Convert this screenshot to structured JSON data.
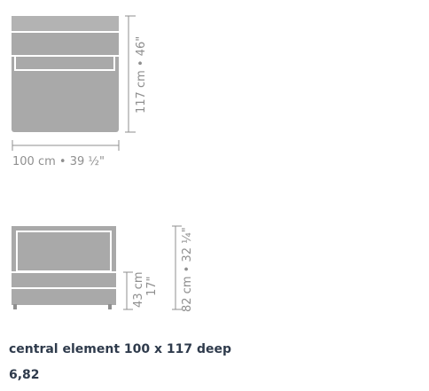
{
  "top_view": {
    "depth_label": "117 cm • 46\"",
    "width_label": "100 cm • 39 ½\""
  },
  "front_view": {
    "seat_height_cm": "43 cm",
    "seat_height_in": "17\"",
    "total_height_label": "82 cm • 32 ¼\""
  },
  "product": {
    "title": "central element 100 x 117 deep",
    "code": "6,82"
  },
  "colors": {
    "fill": "#a9a9a9",
    "line": "#8f8f8f",
    "caption": "#2f3b4c"
  }
}
